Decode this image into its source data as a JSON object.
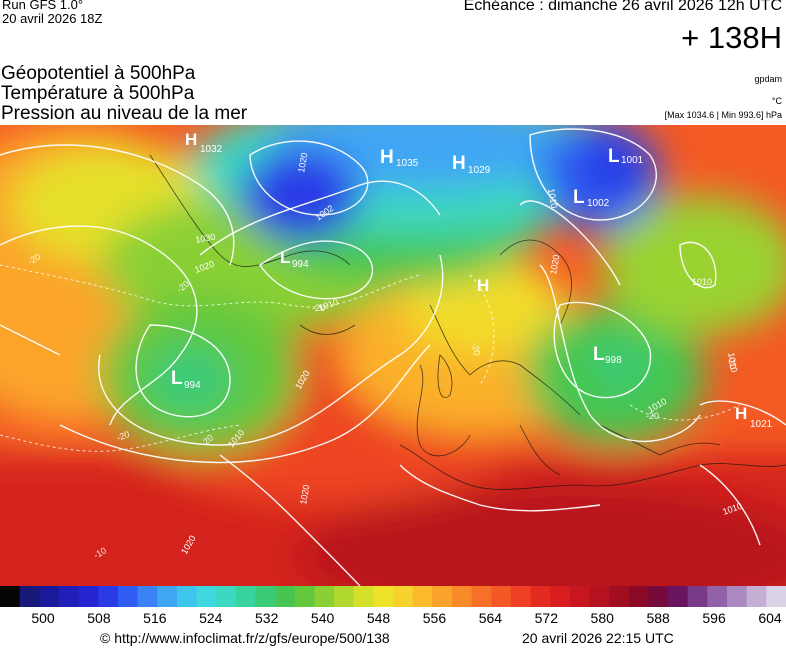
{
  "header": {
    "run": "Run GFS 1.0°",
    "run_date": "20 avril 2026 18Z",
    "echeance": "Echéance : dimanche 26 avril 2026 12h UTC",
    "lead_time": "+ 138H"
  },
  "titles": {
    "line1": "Géopotentiel à 500hPa",
    "line2": "Température à 500hPa",
    "line3": "Pression au niveau de la mer"
  },
  "units": {
    "geopotential": "gpdam",
    "temperature": "°C",
    "pressure_range": "[Max 1034.6 | Min 993.6] hPa"
  },
  "scale": {
    "colors": [
      "#050505",
      "#181878",
      "#1a1a9a",
      "#2020b8",
      "#2424d0",
      "#2a3ae6",
      "#2f5cf2",
      "#3a82f6",
      "#3fa6f4",
      "#3fc4ee",
      "#40d8e0",
      "#3cd8c0",
      "#38d29c",
      "#3acb78",
      "#46c650",
      "#64c83c",
      "#8ad034",
      "#b0d82e",
      "#d4e02a",
      "#eee22a",
      "#f8d22c",
      "#fbba2c",
      "#fba22c",
      "#f98a2a",
      "#f67028",
      "#f35826",
      "#ee4024",
      "#e52a22",
      "#d91e20",
      "#c8161e",
      "#b4121e",
      "#a00e20",
      "#8a0a28",
      "#760a3a",
      "#6a1460",
      "#7a3a8a",
      "#9262a8",
      "#aa88c0",
      "#c4aed4",
      "#dcd2e6"
    ],
    "ticks": [
      "500",
      "508",
      "516",
      "524",
      "532",
      "540",
      "548",
      "556",
      "564",
      "572",
      "580",
      "588",
      "596",
      "604"
    ]
  },
  "map": {
    "pressure_systems": [
      {
        "type": "H",
        "value": "1032"
      },
      {
        "type": "H",
        "value": "1035"
      },
      {
        "type": "H",
        "value": "1029"
      },
      {
        "type": "L",
        "value": "1001"
      },
      {
        "type": "L",
        "value": "1002"
      },
      {
        "type": "L",
        "value": "994"
      },
      {
        "type": "L",
        "value": "994"
      },
      {
        "type": "H",
        "value": ""
      },
      {
        "type": "L",
        "value": "998"
      },
      {
        "type": "H",
        "value": "1021"
      }
    ],
    "isobar_labels": [
      "1020",
      "1010",
      "1002",
      "1030",
      "1020",
      "1020",
      "1010",
      "1020",
      "1010",
      "1020",
      "1020",
      "1010",
      "1010",
      "1010",
      "1010"
    ],
    "temperature_labels": [
      "-20",
      "-20",
      "-20",
      "-20",
      "-20",
      "-20",
      "-20",
      "-20",
      "-10"
    ]
  },
  "footer": {
    "copyright": "© http://www.infoclimat.fr/z/gfs/europe/500/138",
    "generated": "20 avril 2026 22:15 UTC"
  }
}
